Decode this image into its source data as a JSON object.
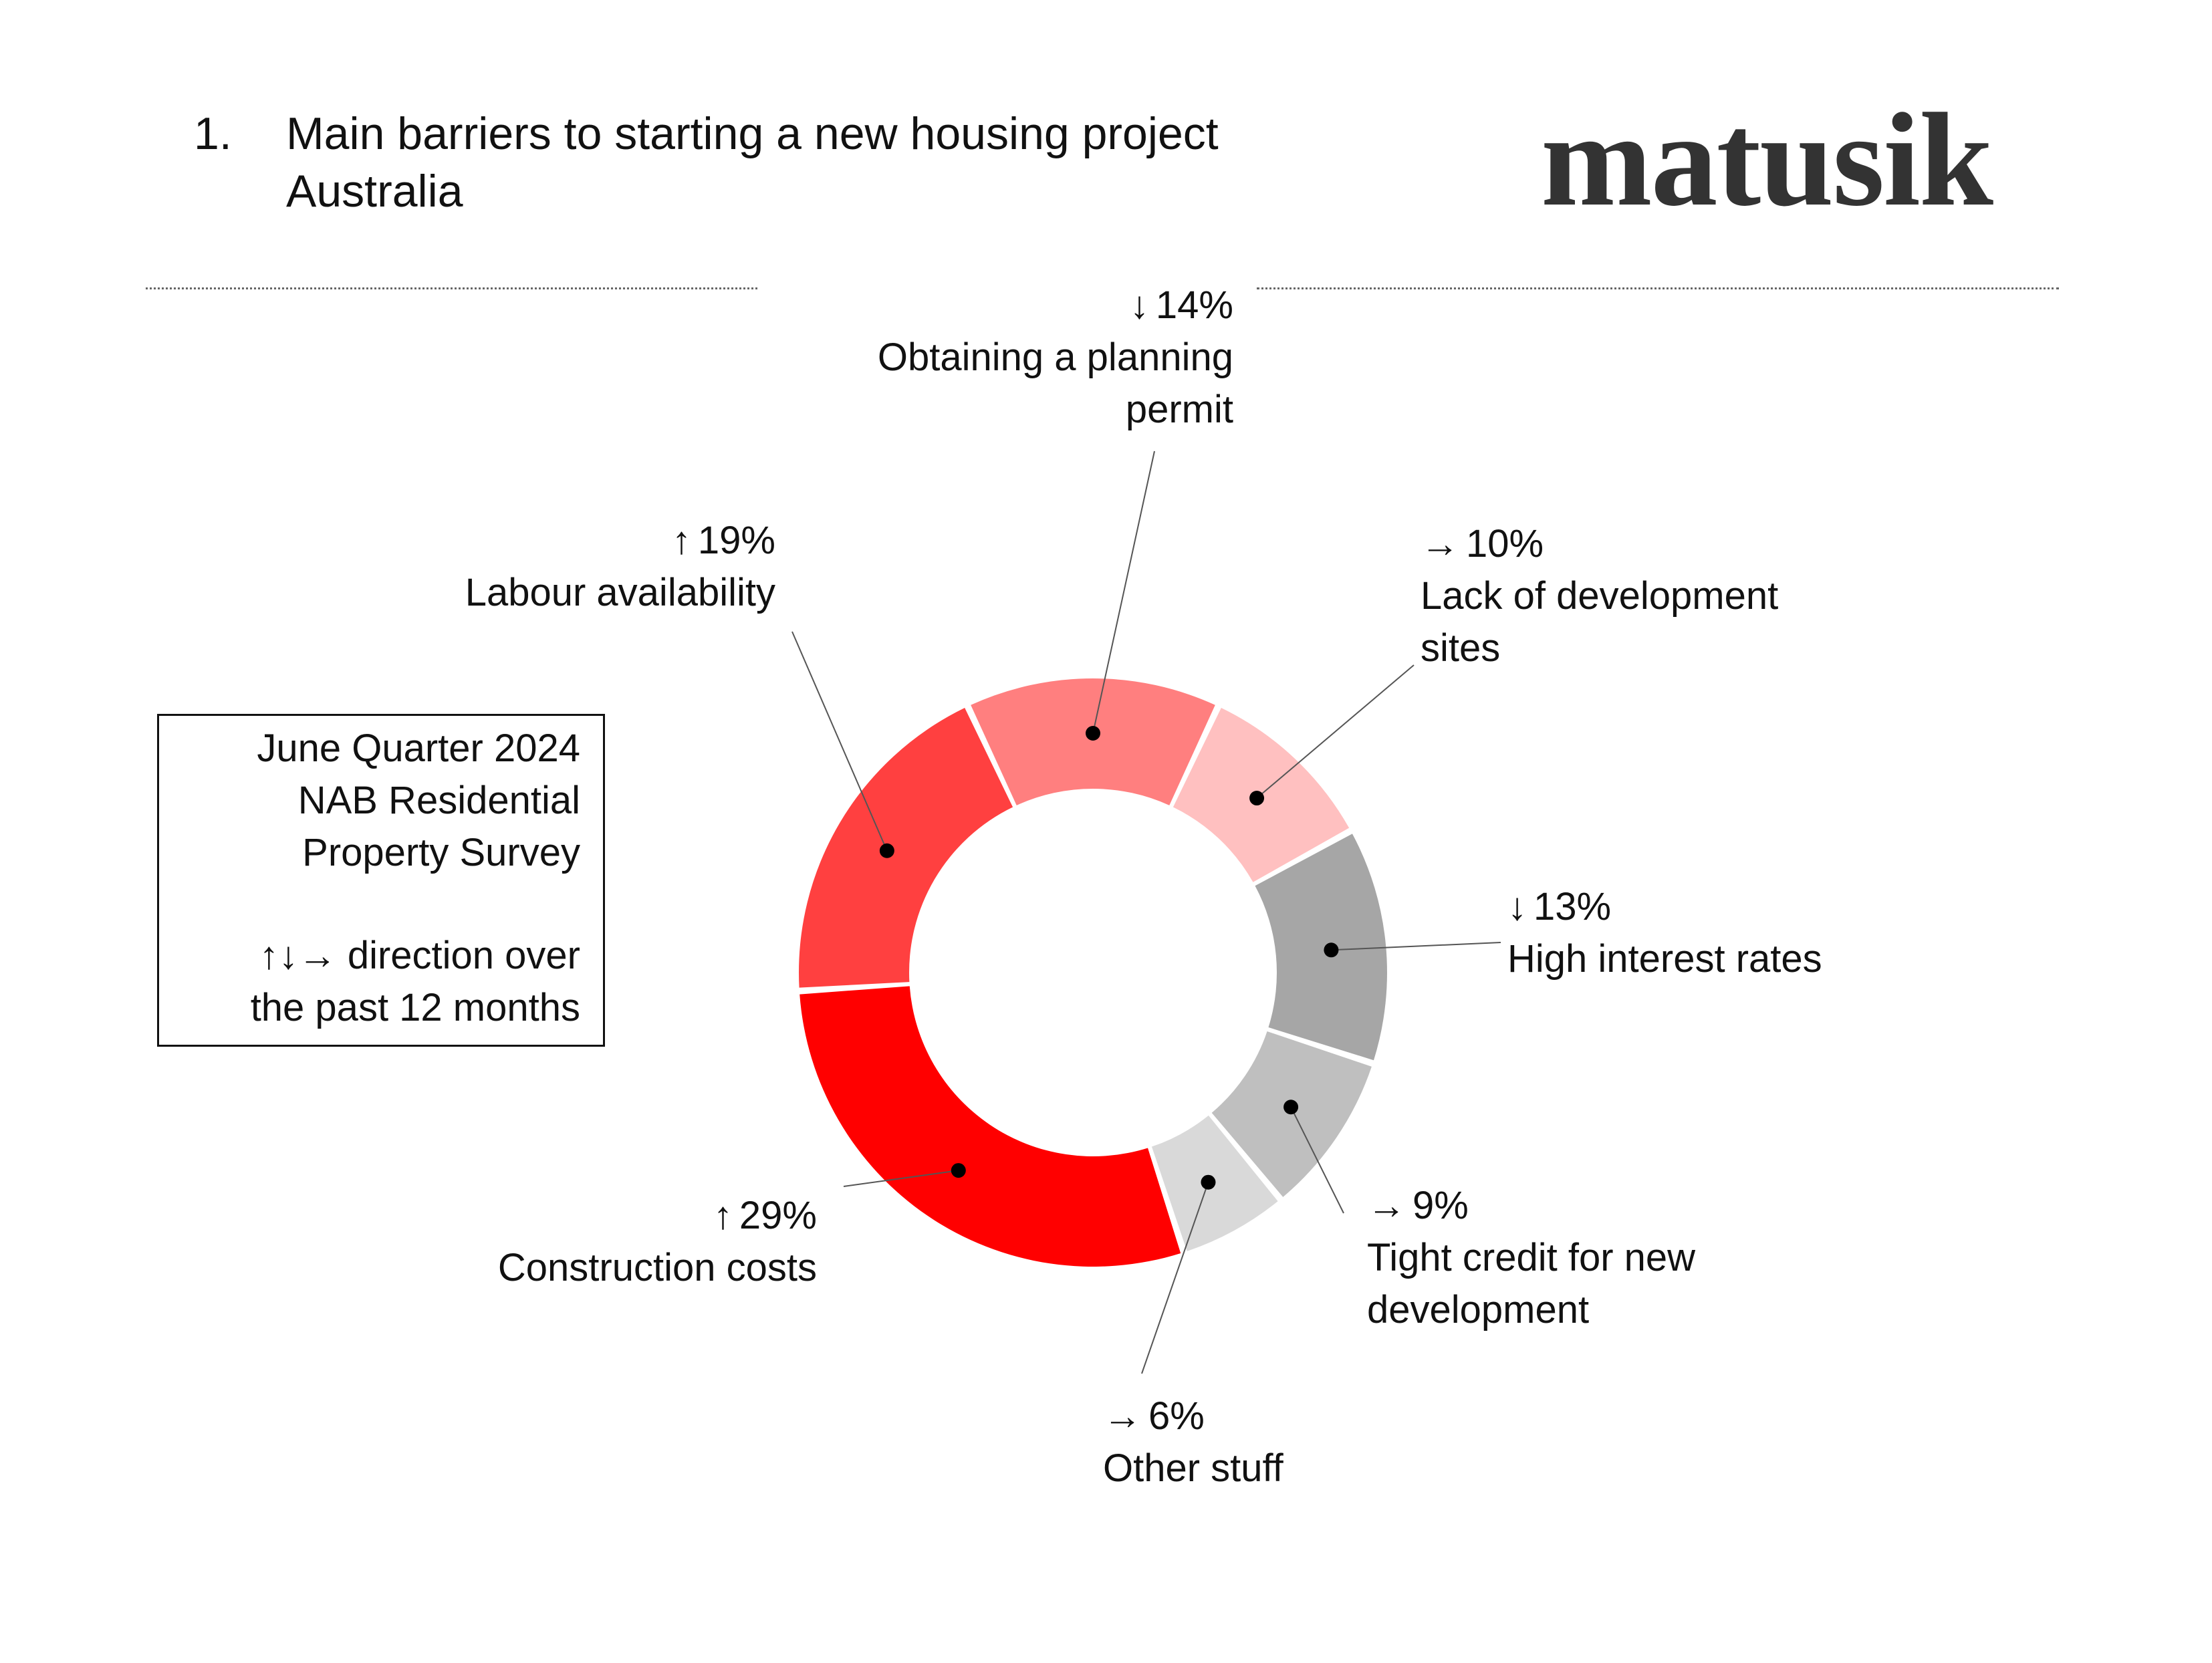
{
  "header": {
    "number": "1.",
    "title": "Main barriers to starting a new housing project",
    "subtitle": "Australia"
  },
  "logo": {
    "text": "matusik"
  },
  "infobox": {
    "line1": "June Quarter 2024",
    "line2": "NAB Residential",
    "line3": "Property Survey",
    "line4": "↑↓→ direction over",
    "line5": "the past 12 months"
  },
  "chart_data": {
    "type": "pie",
    "style": "donut",
    "legend": "none",
    "slices": [
      {
        "label": "Obtaining a planning permit",
        "label_lines": [
          "Obtaining a planning",
          "permit"
        ],
        "value": 14,
        "pct_text": "14%",
        "arrow": "↓",
        "color": "#ff7f7f"
      },
      {
        "label": "Lack of development sites",
        "label_lines": [
          "Lack of development",
          "sites"
        ],
        "value": 10,
        "pct_text": "10%",
        "arrow": "→",
        "color": "#ffc0c0"
      },
      {
        "label": "High interest rates",
        "label_lines": [
          "High interest rates"
        ],
        "value": 13,
        "pct_text": "13%",
        "arrow": "↓",
        "color": "#a6a6a6"
      },
      {
        "label": "Tight credit for new development",
        "label_lines": [
          "Tight credit for new",
          "development"
        ],
        "value": 9,
        "pct_text": "9%",
        "arrow": "→",
        "color": "#bfbfbf"
      },
      {
        "label": "Other stuff",
        "label_lines": [
          "Other stuff"
        ],
        "value": 6,
        "pct_text": "6%",
        "arrow": "→",
        "color": "#d9d9d9"
      },
      {
        "label": "Construction costs",
        "label_lines": [
          "Construction costs"
        ],
        "value": 29,
        "pct_text": "29%",
        "arrow": "↑",
        "color": "#ff0000"
      },
      {
        "label": "Labour availability",
        "label_lines": [
          "Labour availability"
        ],
        "value": 19,
        "pct_text": "19%",
        "arrow": "↑",
        "color": "#ff4040"
      }
    ]
  }
}
